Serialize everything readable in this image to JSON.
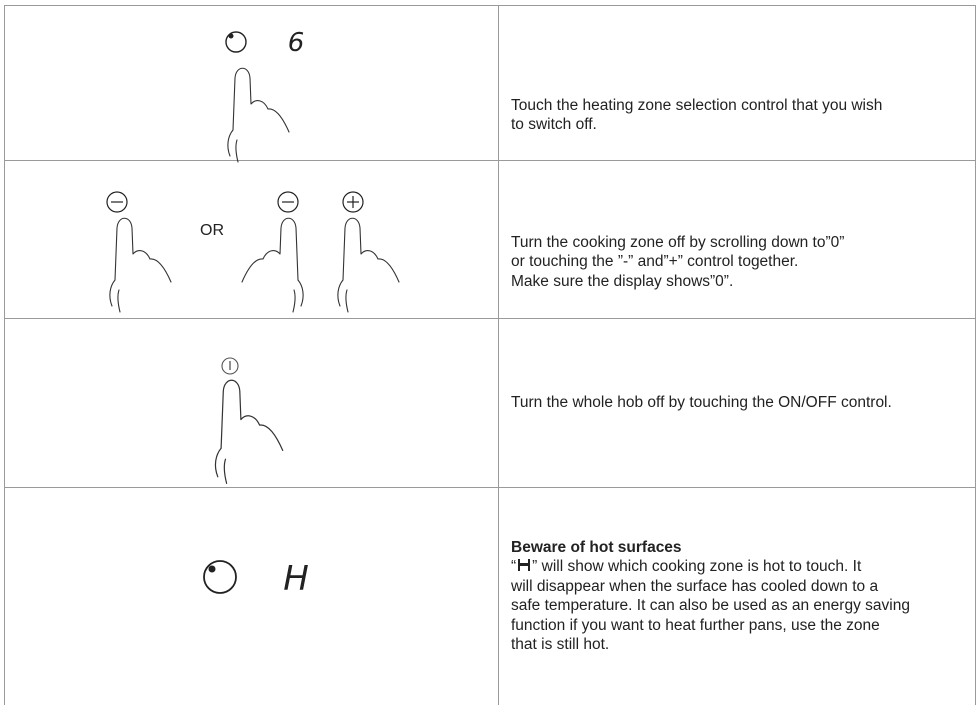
{
  "rows": [
    {
      "display": "6",
      "text": [
        "Touch the heating zone selection control that you wish",
        "to switch off."
      ]
    },
    {
      "separator": "OR",
      "text": [
        "Turn the cooking zone off by scrolling down to”0”",
        "or touching the ”-” and”+” control together.",
        "Make sure the display shows”0”."
      ]
    },
    {
      "text": [
        "Turn the whole hob off by touching the ON/OFF control."
      ]
    },
    {
      "display": "H",
      "title": "Beware of hot surfaces",
      "text_open": "“",
      "text_rest": [
        "” will show which cooking zone is hot to touch. It",
        "will disappear when the surface has cooled down to a",
        "safe temperature. It can also be used as an energy saving",
        "function if you want to heat further pans, use the zone",
        "that is still hot."
      ]
    }
  ]
}
